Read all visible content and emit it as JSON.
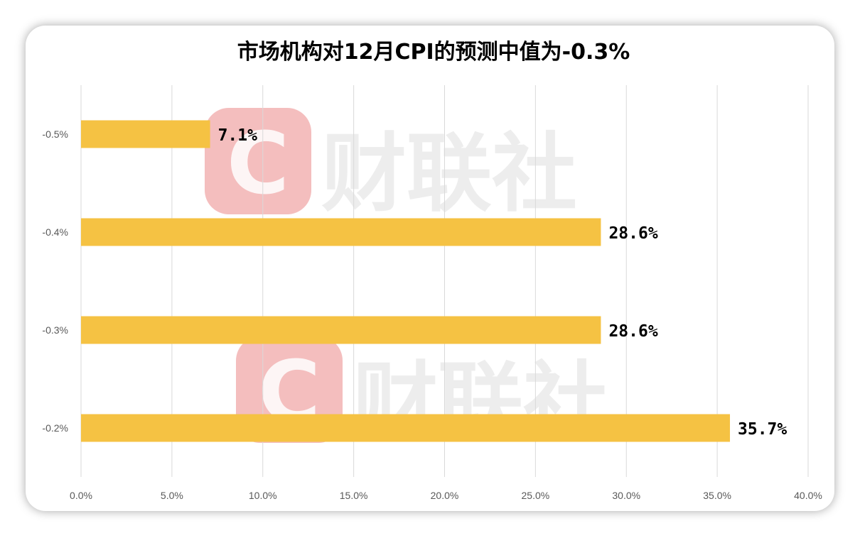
{
  "chart_data": {
    "type": "bar",
    "orientation": "horizontal",
    "title": "市场机构对12月CPI的预测中值为-0.3%",
    "categories": [
      "-0.5%",
      "-0.4%",
      "-0.3%",
      "-0.2%"
    ],
    "values": [
      7.1,
      28.6,
      28.6,
      35.7
    ],
    "data_labels": [
      "7.1%",
      "28.6%",
      "28.6%",
      "35.7%"
    ],
    "xlim": [
      0,
      40
    ],
    "x_ticks": [
      "0.0%",
      "5.0%",
      "10.0%",
      "15.0%",
      "20.0%",
      "25.0%",
      "30.0%",
      "35.0%",
      "40.0%"
    ],
    "grid": "vertical",
    "legend": "none",
    "bar_color": "#F5C243"
  },
  "watermark": {
    "text": "财联社",
    "logo_color": "#F3B7B7",
    "text_color": "#ECECEC"
  }
}
